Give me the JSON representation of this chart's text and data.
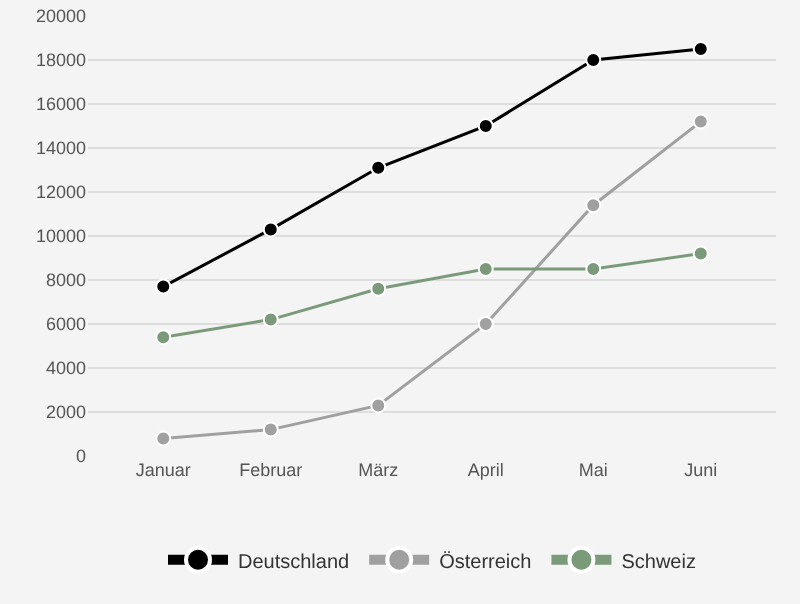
{
  "chart_data": {
    "type": "line",
    "categories": [
      "Januar",
      "Februar",
      "März",
      "April",
      "Mai",
      "Juni"
    ],
    "series": [
      {
        "name": "Deutschland",
        "color": "#000000",
        "values": [
          7700,
          10300,
          13100,
          15000,
          18000,
          18500
        ]
      },
      {
        "name": "Österreich",
        "color": "#a0a0a0",
        "values": [
          800,
          1200,
          2300,
          6000,
          11400,
          15200
        ]
      },
      {
        "name": "Schweiz",
        "color": "#7a9a7a",
        "values": [
          5400,
          6200,
          7600,
          8500,
          8500,
          9200
        ]
      }
    ],
    "ylim": [
      0,
      20000
    ],
    "yticks": [
      0,
      2000,
      4000,
      6000,
      8000,
      10000,
      12000,
      14000,
      16000,
      18000,
      20000
    ],
    "grid": "y",
    "legend": "bottom",
    "marker": "circle",
    "line_style": "solid"
  }
}
